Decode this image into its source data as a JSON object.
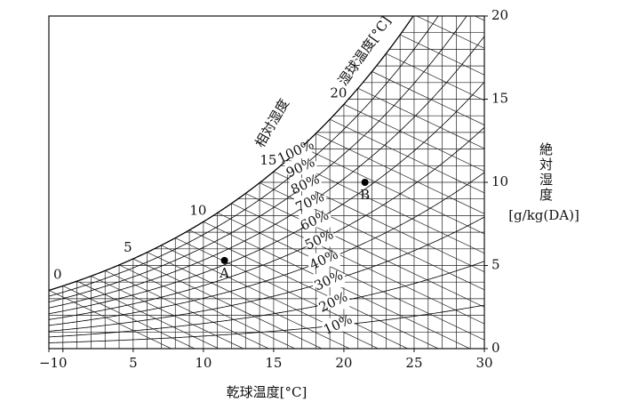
{
  "chart_data": {
    "type": "psychrometric",
    "x_label": "乾球温度[°C]",
    "y_label": "絶対湿度",
    "y_unit": "[g/kg(DA)]",
    "rh_title": "相対湿度",
    "wb_title": "湿球温度[°C]",
    "xlim": [
      -1,
      30
    ],
    "xticks": [
      {
        "value": -1,
        "label": "−1"
      },
      0,
      5,
      10,
      15,
      20,
      25,
      30
    ],
    "ylim": [
      0,
      20
    ],
    "yticks": [
      0,
      5,
      10,
      15,
      20
    ],
    "rh_curves": [
      10,
      20,
      30,
      40,
      50,
      60,
      70,
      80,
      90,
      100
    ],
    "rh_labels": [
      "10%",
      "20%",
      "30%",
      "40%",
      "50%",
      "60%",
      "70%",
      "80%",
      "90%",
      "100%"
    ],
    "wet_bulb_labels": [
      0,
      5,
      10,
      15,
      20
    ],
    "points": [
      {
        "label": "A",
        "x": 11.5,
        "y": 5.3
      },
      {
        "label": "B",
        "x": 21.5,
        "y": 10
      }
    ],
    "color": "#000000"
  }
}
